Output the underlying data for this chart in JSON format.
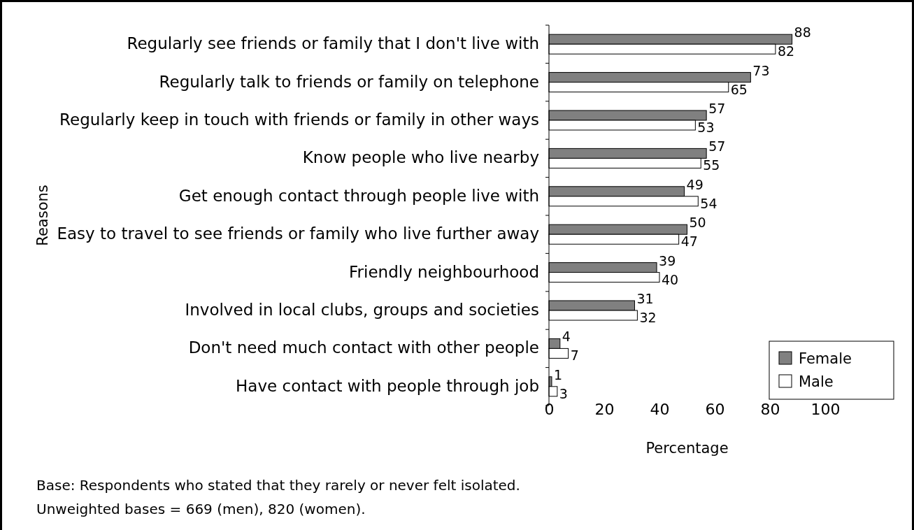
{
  "chart_data": {
    "type": "bar",
    "orientation": "horizontal",
    "xlabel": "Percentage",
    "ylabel": "Reasons",
    "categories": [
      "Regularly see friends or family that I don't live with",
      "Regularly talk to friends or family on telephone",
      "Regularly keep in touch with friends or family in other ways",
      "Know people who live nearby",
      "Get enough contact through people live with",
      "Easy to travel to see friends or family who live further away",
      "Friendly neighbourhood",
      "Involved in local clubs, groups and societies",
      "Don't need much contact with other people",
      "Have contact with people through job"
    ],
    "series": [
      {
        "name": "Female",
        "color": "#808080",
        "values": [
          88,
          73,
          57,
          57,
          49,
          50,
          39,
          31,
          4,
          1
        ]
      },
      {
        "name": "Male",
        "color": "#ffffff",
        "values": [
          82,
          65,
          53,
          55,
          54,
          47,
          40,
          32,
          7,
          3
        ]
      }
    ],
    "xlim": [
      0,
      100
    ],
    "xticks": [
      0,
      20,
      40,
      60,
      80,
      100
    ],
    "data_labels": true,
    "legend": "bottom right",
    "annotations": [
      "Base: Respondents who stated that they rarely or never felt isolated.",
      "Unweighted bases = 669 (men), 820 (women)."
    ]
  }
}
